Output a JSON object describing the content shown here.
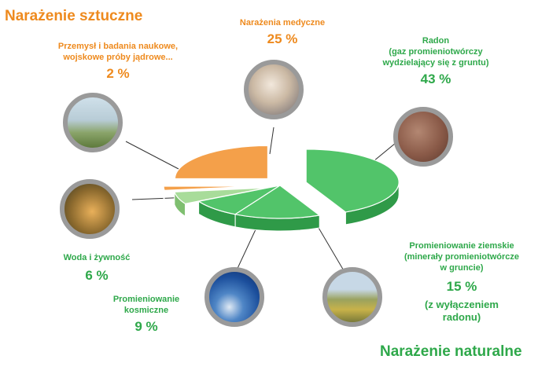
{
  "titles": {
    "artificial": "Narażenie sztuczne",
    "natural": "Narażenie naturalne"
  },
  "colors": {
    "artificial": "#ee8a1e",
    "natural": "#2ea84a",
    "pie_orange": "#f4a04a",
    "pie_green": "#52c46a",
    "pie_light_green": "#a8dc9a",
    "ring": "#9a9a9a"
  },
  "chart_data": {
    "type": "pie",
    "title": "",
    "slices": [
      {
        "name": "Radon\n(gaz promieniotwórczy\nwydzielający się z gruntu)",
        "value": 43,
        "value_label": "43 %",
        "group": "natural",
        "icon": "soil-photo-icon"
      },
      {
        "name": "Promieniowanie ziemskie\n(minerały promieniotwórcze\nw gruncie)",
        "value": 15,
        "value_label": "15 %",
        "note": "(z wyłączeniem\nradonu)",
        "group": "natural",
        "icon": "landscape-photo-icon"
      },
      {
        "name": "Promieniowanie\nkosmiczne",
        "value": 9,
        "value_label": "9 %",
        "group": "natural",
        "icon": "earth-from-space-photo-icon"
      },
      {
        "name": "Woda i żywność",
        "value": 6,
        "value_label": "6 %",
        "group": "natural",
        "icon": "food-photo-icon"
      },
      {
        "name": "Przemysł i badania naukowe,\nwojskowe próby jądrowe...",
        "value": 2,
        "value_label": "2 %",
        "group": "artificial",
        "icon": "industry-photo-icon"
      },
      {
        "name": "Narażenia medyczne",
        "value": 25,
        "value_label": "25 %",
        "group": "artificial",
        "icon": "medical-photo-icon"
      }
    ]
  }
}
